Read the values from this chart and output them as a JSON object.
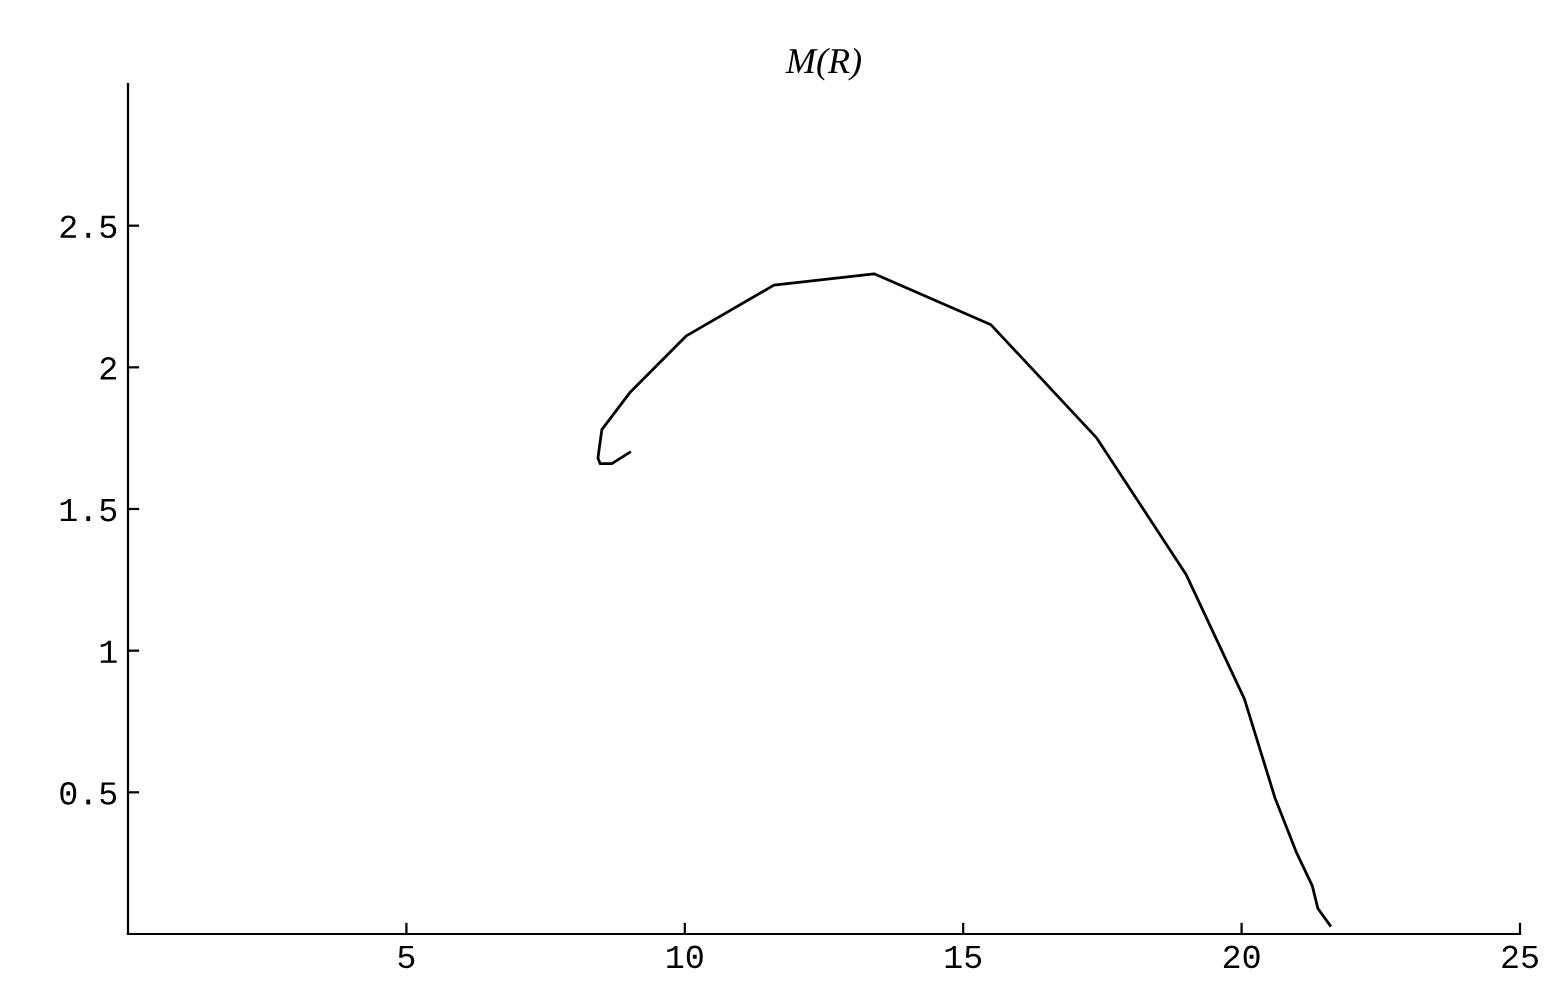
{
  "chart_data": {
    "type": "line",
    "title": "M(R)",
    "xlim": [
      0,
      25
    ],
    "ylim": [
      0,
      3
    ],
    "xticks": [
      5,
      10,
      15,
      20,
      25
    ],
    "yticks": [
      0.5,
      1,
      1.5,
      2,
      2.5
    ],
    "grid": false,
    "marker": "none",
    "line_style": "solid",
    "series": [
      {
        "color": "#000000",
        "x": [
          9.01,
          8.69,
          8.48,
          8.44,
          8.51,
          9.01,
          10.02,
          11.6,
          13.4,
          15.5,
          17.4,
          19.0,
          20.05,
          20.6,
          20.98,
          21.27,
          21.37,
          21.59
        ],
        "values": [
          1.7,
          1.66,
          1.66,
          1.68,
          1.78,
          1.91,
          2.11,
          2.29,
          2.33,
          2.15,
          1.75,
          1.27,
          0.83,
          0.48,
          0.29,
          0.17,
          0.09,
          0.03
        ]
      }
    ]
  }
}
